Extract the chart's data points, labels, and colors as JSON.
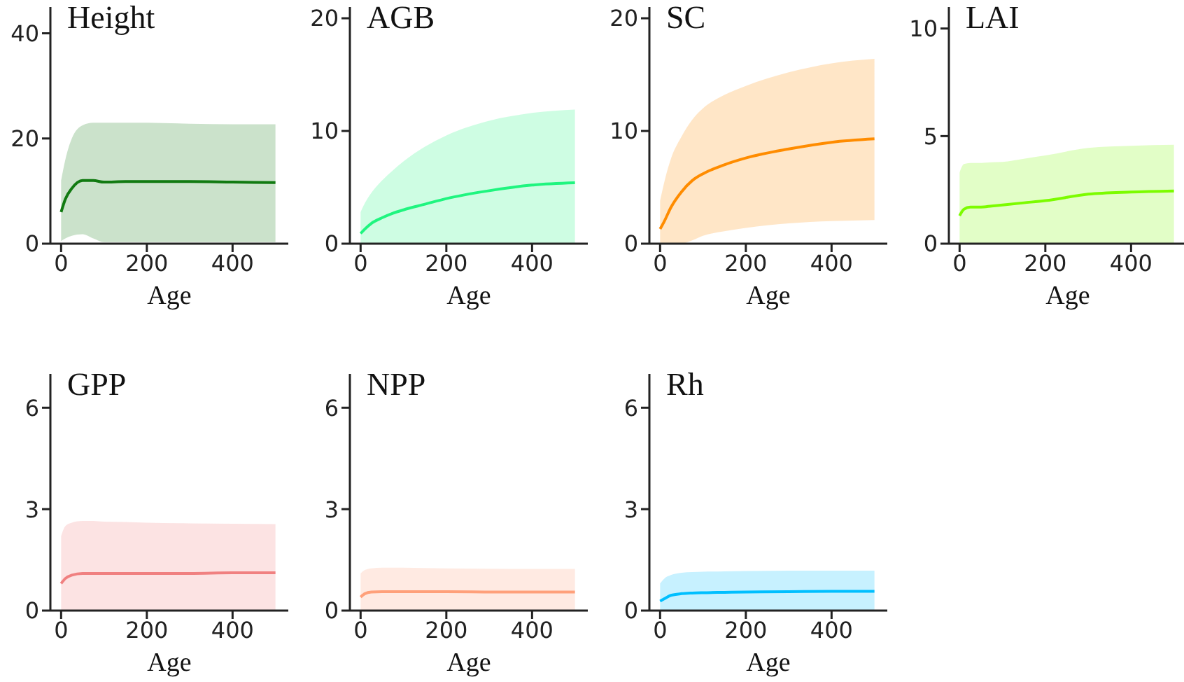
{
  "chart_data": [
    {
      "type": "line",
      "title": "Height",
      "xlabel": "Age",
      "x": [
        0,
        10,
        25,
        50,
        75,
        100,
        150,
        200,
        300,
        400,
        500
      ],
      "xlim": [
        -25,
        530
      ],
      "xticks": [
        0,
        200,
        400
      ],
      "ylim": [
        0,
        45
      ],
      "yticks": [
        0,
        20,
        40
      ],
      "grid": false,
      "legend": false,
      "series": [
        {
          "color": "#117a11",
          "values": [
            6,
            8.5,
            10.5,
            12,
            12,
            11.7,
            11.8,
            11.8,
            11.8,
            11.7,
            11.6
          ],
          "lower": [
            0.5,
            1,
            1.5,
            1.8,
            1,
            0.3,
            0.3,
            0.3,
            0.3,
            0.3,
            0.3
          ],
          "upper": [
            12,
            16,
            20,
            22.5,
            23,
            23,
            23,
            23,
            22.8,
            22.7,
            22.7
          ]
        }
      ]
    },
    {
      "type": "line",
      "title": "AGB",
      "xlabel": "Age",
      "x": [
        0,
        10,
        25,
        50,
        75,
        100,
        150,
        200,
        300,
        400,
        500
      ],
      "xlim": [
        -25,
        530
      ],
      "xticks": [
        0,
        200,
        400
      ],
      "ylim": [
        0,
        21
      ],
      "yticks": [
        0,
        10,
        20
      ],
      "grid": false,
      "legend": false,
      "series": [
        {
          "color": "#1ff57f",
          "values": [
            0.9,
            1.3,
            1.8,
            2.3,
            2.7,
            3,
            3.5,
            4,
            4.7,
            5.2,
            5.4
          ],
          "lower": [
            0,
            0,
            0,
            0,
            0,
            0,
            0,
            0,
            0,
            0,
            0
          ],
          "upper": [
            2.8,
            3.6,
            4.5,
            5.6,
            6.5,
            7.3,
            8.6,
            9.6,
            10.9,
            11.6,
            11.9
          ]
        }
      ]
    },
    {
      "type": "line",
      "title": "SC",
      "xlabel": "Age",
      "x": [
        0,
        10,
        25,
        50,
        75,
        100,
        150,
        200,
        300,
        400,
        500
      ],
      "xlim": [
        -25,
        530
      ],
      "xticks": [
        0,
        200,
        400
      ],
      "ylim": [
        0,
        21
      ],
      "yticks": [
        0,
        10,
        20
      ],
      "grid": false,
      "legend": false,
      "series": [
        {
          "color": "#ff8c00",
          "values": [
            1.3,
            2,
            3.2,
            4.6,
            5.6,
            6.2,
            7,
            7.6,
            8.4,
            9,
            9.3
          ],
          "lower": [
            0,
            0,
            0,
            0,
            0.3,
            0.7,
            1.1,
            1.4,
            1.8,
            2,
            2.1
          ],
          "upper": [
            3.8,
            5.5,
            7.5,
            9.5,
            11,
            12,
            13.2,
            14,
            15.2,
            16,
            16.4
          ]
        }
      ]
    },
    {
      "type": "line",
      "title": "LAI",
      "xlabel": "Age",
      "x": [
        0,
        10,
        25,
        50,
        75,
        100,
        150,
        200,
        300,
        400,
        500
      ],
      "xlim": [
        -25,
        530
      ],
      "xticks": [
        0,
        200,
        400
      ],
      "ylim": [
        0,
        11
      ],
      "yticks": [
        0,
        5,
        10
      ],
      "grid": false,
      "legend": false,
      "series": [
        {
          "color": "#7cfc00",
          "values": [
            1.3,
            1.6,
            1.7,
            1.7,
            1.75,
            1.8,
            1.9,
            2,
            2.3,
            2.4,
            2.45
          ],
          "lower": [
            0,
            0,
            0,
            0,
            0,
            0,
            0,
            0,
            0,
            0,
            0
          ],
          "upper": [
            3.3,
            3.7,
            3.75,
            3.75,
            3.78,
            3.8,
            3.95,
            4.1,
            4.45,
            4.55,
            4.6
          ]
        }
      ]
    },
    {
      "type": "line",
      "title": "GPP",
      "xlabel": "Age",
      "x": [
        0,
        10,
        25,
        50,
        75,
        100,
        150,
        200,
        300,
        400,
        500
      ],
      "xlim": [
        -25,
        530
      ],
      "xticks": [
        0,
        200,
        400
      ],
      "ylim": [
        0,
        7
      ],
      "yticks": [
        0,
        3,
        6
      ],
      "grid": false,
      "legend": false,
      "series": [
        {
          "color": "#f08080",
          "values": [
            0.8,
            0.95,
            1.05,
            1.1,
            1.1,
            1.1,
            1.1,
            1.1,
            1.1,
            1.12,
            1.12
          ],
          "lower": [
            0,
            0,
            0,
            0,
            0,
            0,
            0,
            0,
            0,
            0,
            0
          ],
          "upper": [
            2.2,
            2.5,
            2.6,
            2.65,
            2.65,
            2.63,
            2.62,
            2.6,
            2.58,
            2.57,
            2.56
          ]
        }
      ]
    },
    {
      "type": "line",
      "title": "NPP",
      "xlabel": "Age",
      "x": [
        0,
        10,
        25,
        50,
        75,
        100,
        150,
        200,
        300,
        400,
        500
      ],
      "xlim": [
        -25,
        530
      ],
      "xticks": [
        0,
        200,
        400
      ],
      "ylim": [
        0,
        7
      ],
      "yticks": [
        0,
        3,
        6
      ],
      "grid": false,
      "legend": false,
      "series": [
        {
          "color": "#ffa07a",
          "values": [
            0.4,
            0.5,
            0.55,
            0.56,
            0.56,
            0.56,
            0.56,
            0.56,
            0.55,
            0.55,
            0.55
          ],
          "lower": [
            0,
            0,
            0,
            0,
            0,
            0,
            0,
            0,
            0,
            0,
            0
          ],
          "upper": [
            1.1,
            1.2,
            1.25,
            1.27,
            1.27,
            1.27,
            1.26,
            1.25,
            1.24,
            1.23,
            1.23
          ]
        }
      ]
    },
    {
      "type": "line",
      "title": "Rh",
      "xlabel": "Age",
      "x": [
        0,
        10,
        25,
        50,
        75,
        100,
        150,
        200,
        300,
        400,
        500
      ],
      "xlim": [
        -25,
        530
      ],
      "xticks": [
        0,
        200,
        400
      ],
      "ylim": [
        0,
        7
      ],
      "yticks": [
        0,
        3,
        6
      ],
      "grid": false,
      "legend": false,
      "series": [
        {
          "color": "#00bfff",
          "values": [
            0.28,
            0.35,
            0.45,
            0.5,
            0.52,
            0.53,
            0.54,
            0.55,
            0.56,
            0.57,
            0.57
          ],
          "lower": [
            0,
            0,
            0,
            0,
            0,
            0,
            0,
            0,
            0,
            0,
            0
          ],
          "upper": [
            0.8,
            0.95,
            1.05,
            1.12,
            1.14,
            1.15,
            1.16,
            1.17,
            1.18,
            1.18,
            1.18
          ]
        }
      ]
    }
  ]
}
